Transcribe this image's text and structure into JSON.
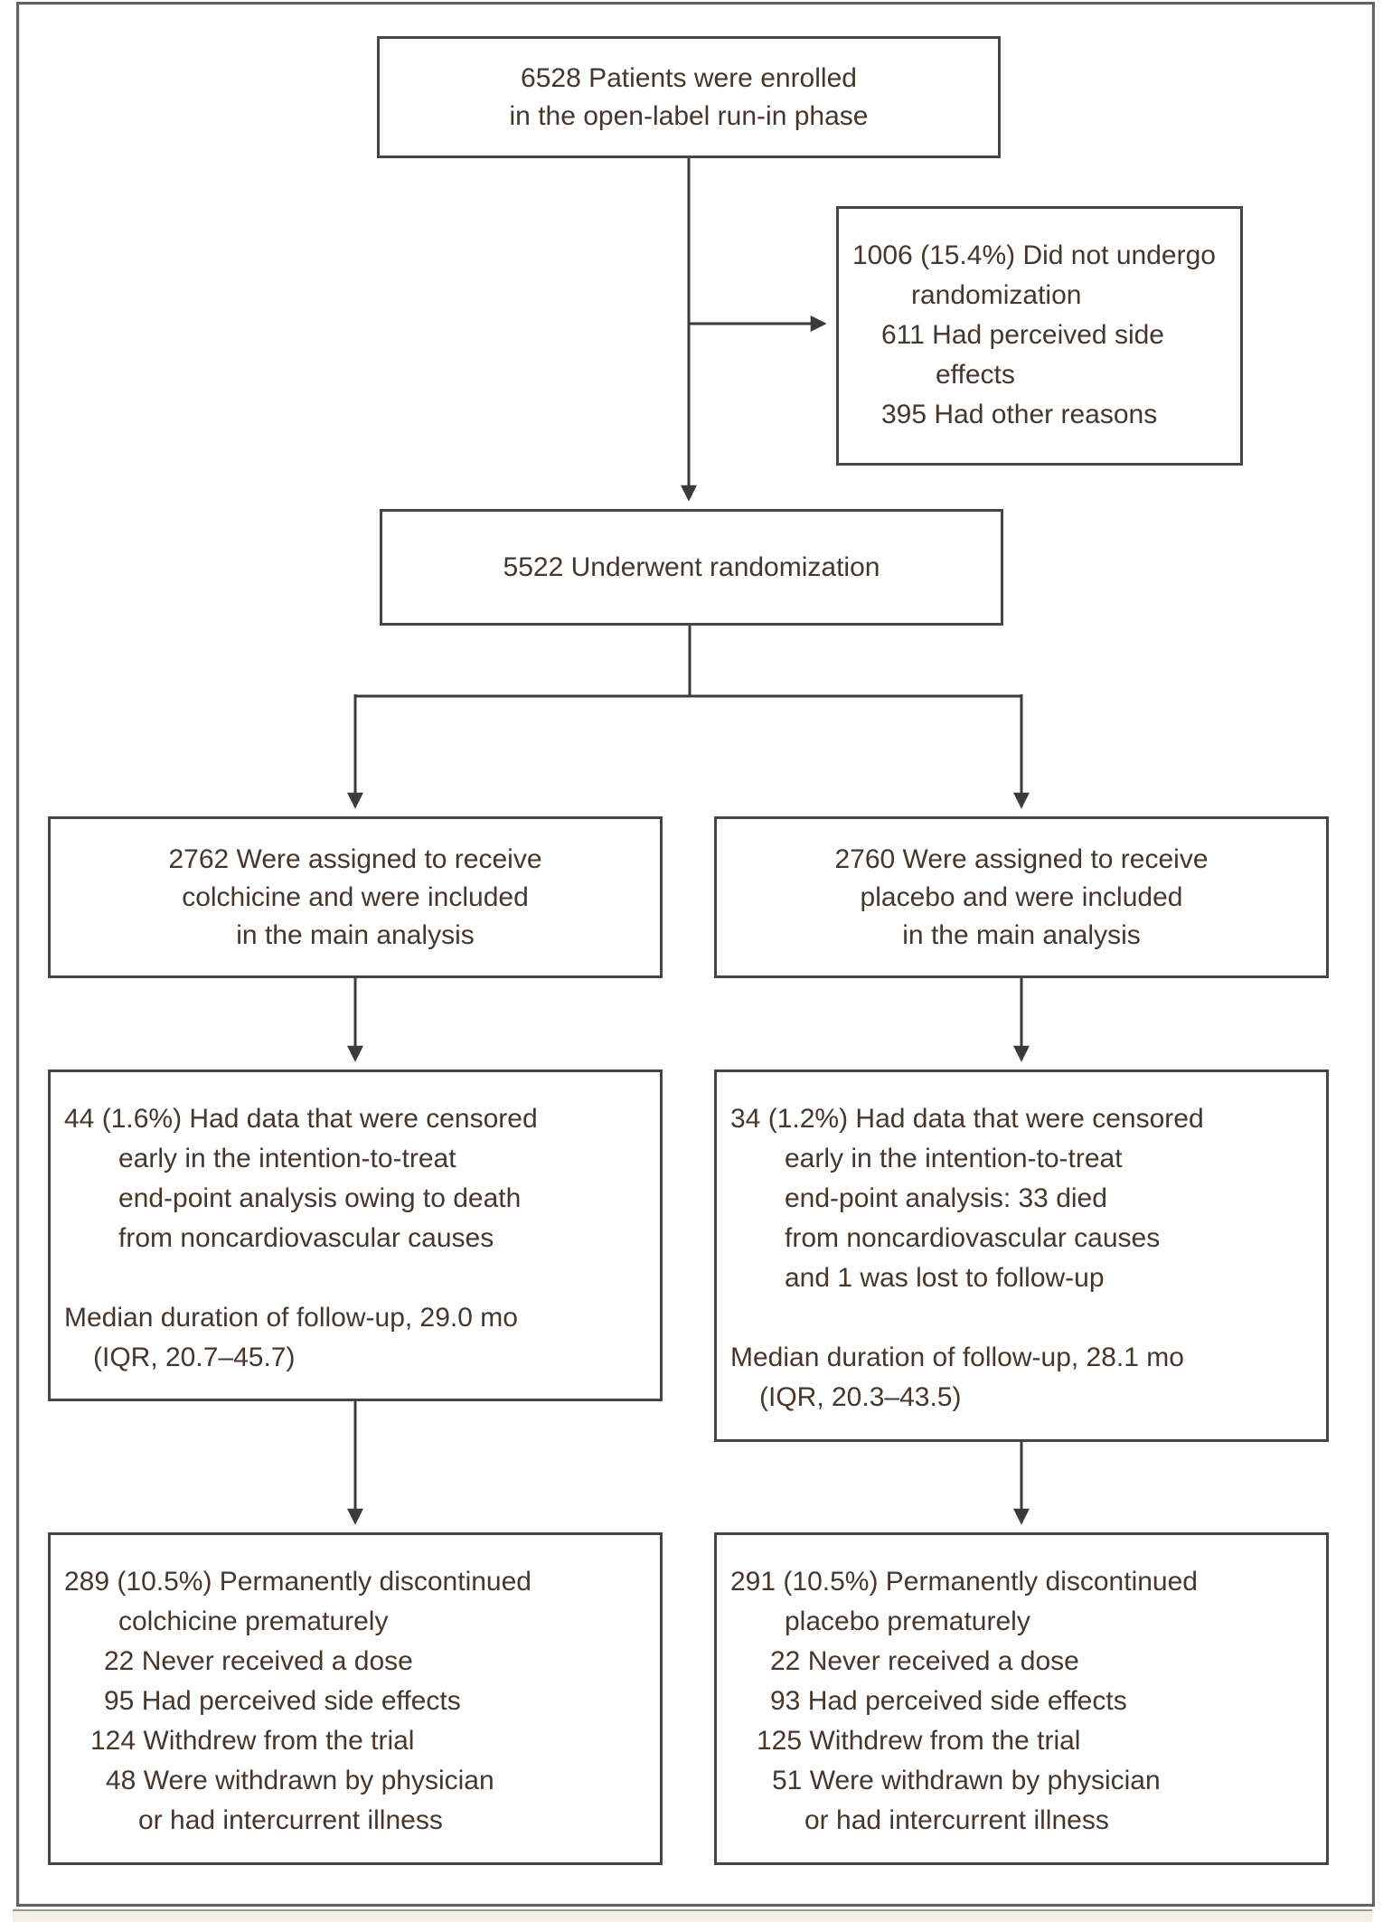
{
  "figure": {
    "title": "Enrollment, Randomization, and Follow-up (CONSORT flow diagram)",
    "colors": {
      "text": "#46362c",
      "box_border": "#454547",
      "outer_border": "#636365",
      "connector": "#3b3b3d",
      "caption_strip": "#f4f0e4"
    },
    "boxes": {
      "enrolled": {
        "align": "center",
        "lines": [
          {
            "text": "6528 Patients were enrolled",
            "indent": 0
          },
          {
            "text": "in the open-label run-in phase",
            "indent": 0
          }
        ]
      },
      "not_randomized": {
        "align": "left",
        "lines": [
          {
            "text": "1006 (15.4%) Did not undergo",
            "indent": 0
          },
          {
            "text": "randomization",
            "indent": 65
          },
          {
            "text": "611 Had perceived side",
            "indent": 32
          },
          {
            "text": "effects",
            "indent": 92
          },
          {
            "text": "395 Had other reasons",
            "indent": 32
          }
        ]
      },
      "randomized": {
        "align": "center",
        "lines": [
          {
            "text": "5522 Underwent randomization",
            "indent": 0
          }
        ]
      },
      "colchicine_assigned": {
        "align": "center",
        "lines": [
          {
            "text": "2762 Were assigned to receive",
            "indent": 0
          },
          {
            "text": "colchicine and were included",
            "indent": 0
          },
          {
            "text": "in the main analysis",
            "indent": 0
          }
        ]
      },
      "placebo_assigned": {
        "align": "center",
        "lines": [
          {
            "text": "2760 Were assigned to receive",
            "indent": 0
          },
          {
            "text": "placebo and were included",
            "indent": 0
          },
          {
            "text": "in the main analysis",
            "indent": 0
          }
        ]
      },
      "colchicine_censored": {
        "align": "left",
        "lines": [
          {
            "text": "44 (1.6%) Had data that were censored",
            "indent": 0
          },
          {
            "text": "early in the intention-to-treat",
            "indent": 60
          },
          {
            "text": "end-point analysis owing to death",
            "indent": 60
          },
          {
            "text": "from noncardiovascular causes",
            "indent": 60
          },
          {
            "text": "",
            "indent": 0
          },
          {
            "text": "Median duration of follow-up, 29.0 mo",
            "indent": 0
          },
          {
            "text": "(IQR, 20.7–45.7)",
            "indent": 32
          }
        ]
      },
      "placebo_censored": {
        "align": "left",
        "lines": [
          {
            "text": "34 (1.2%) Had data that were censored",
            "indent": 0
          },
          {
            "text": "early in the intention-to-treat",
            "indent": 60
          },
          {
            "text": "end-point analysis: 33 died",
            "indent": 60
          },
          {
            "text": "from noncardiovascular causes",
            "indent": 60
          },
          {
            "text": "and 1 was lost to follow-up",
            "indent": 60
          },
          {
            "text": "",
            "indent": 0
          },
          {
            "text": "Median duration of follow-up, 28.1 mo",
            "indent": 0
          },
          {
            "text": "(IQR, 20.3–43.5)",
            "indent": 32
          }
        ]
      },
      "colchicine_discontinued": {
        "align": "left",
        "lines": [
          {
            "text": "289 (10.5%) Permanently discontinued",
            "indent": 0
          },
          {
            "text": "colchicine prematurely",
            "indent": 60
          },
          {
            "text": "22 Never received a dose",
            "indent": 44
          },
          {
            "text": "95 Had perceived side effects",
            "indent": 44
          },
          {
            "text": "124 Withdrew from the trial",
            "indent": 29
          },
          {
            "text": "48 Were withdrawn by physician",
            "indent": 46
          },
          {
            "text": "or had intercurrent illness",
            "indent": 82
          }
        ]
      },
      "placebo_discontinued": {
        "align": "left",
        "lines": [
          {
            "text": "291 (10.5%) Permanently discontinued",
            "indent": 0
          },
          {
            "text": "placebo prematurely",
            "indent": 60
          },
          {
            "text": "22 Never received a dose",
            "indent": 44
          },
          {
            "text": "93 Had perceived side effects",
            "indent": 44
          },
          {
            "text": "125 Withdrew from the trial",
            "indent": 29
          },
          {
            "text": "51 Were withdrawn by physician",
            "indent": 46
          },
          {
            "text": "or had intercurrent illness",
            "indent": 82
          }
        ]
      }
    }
  }
}
